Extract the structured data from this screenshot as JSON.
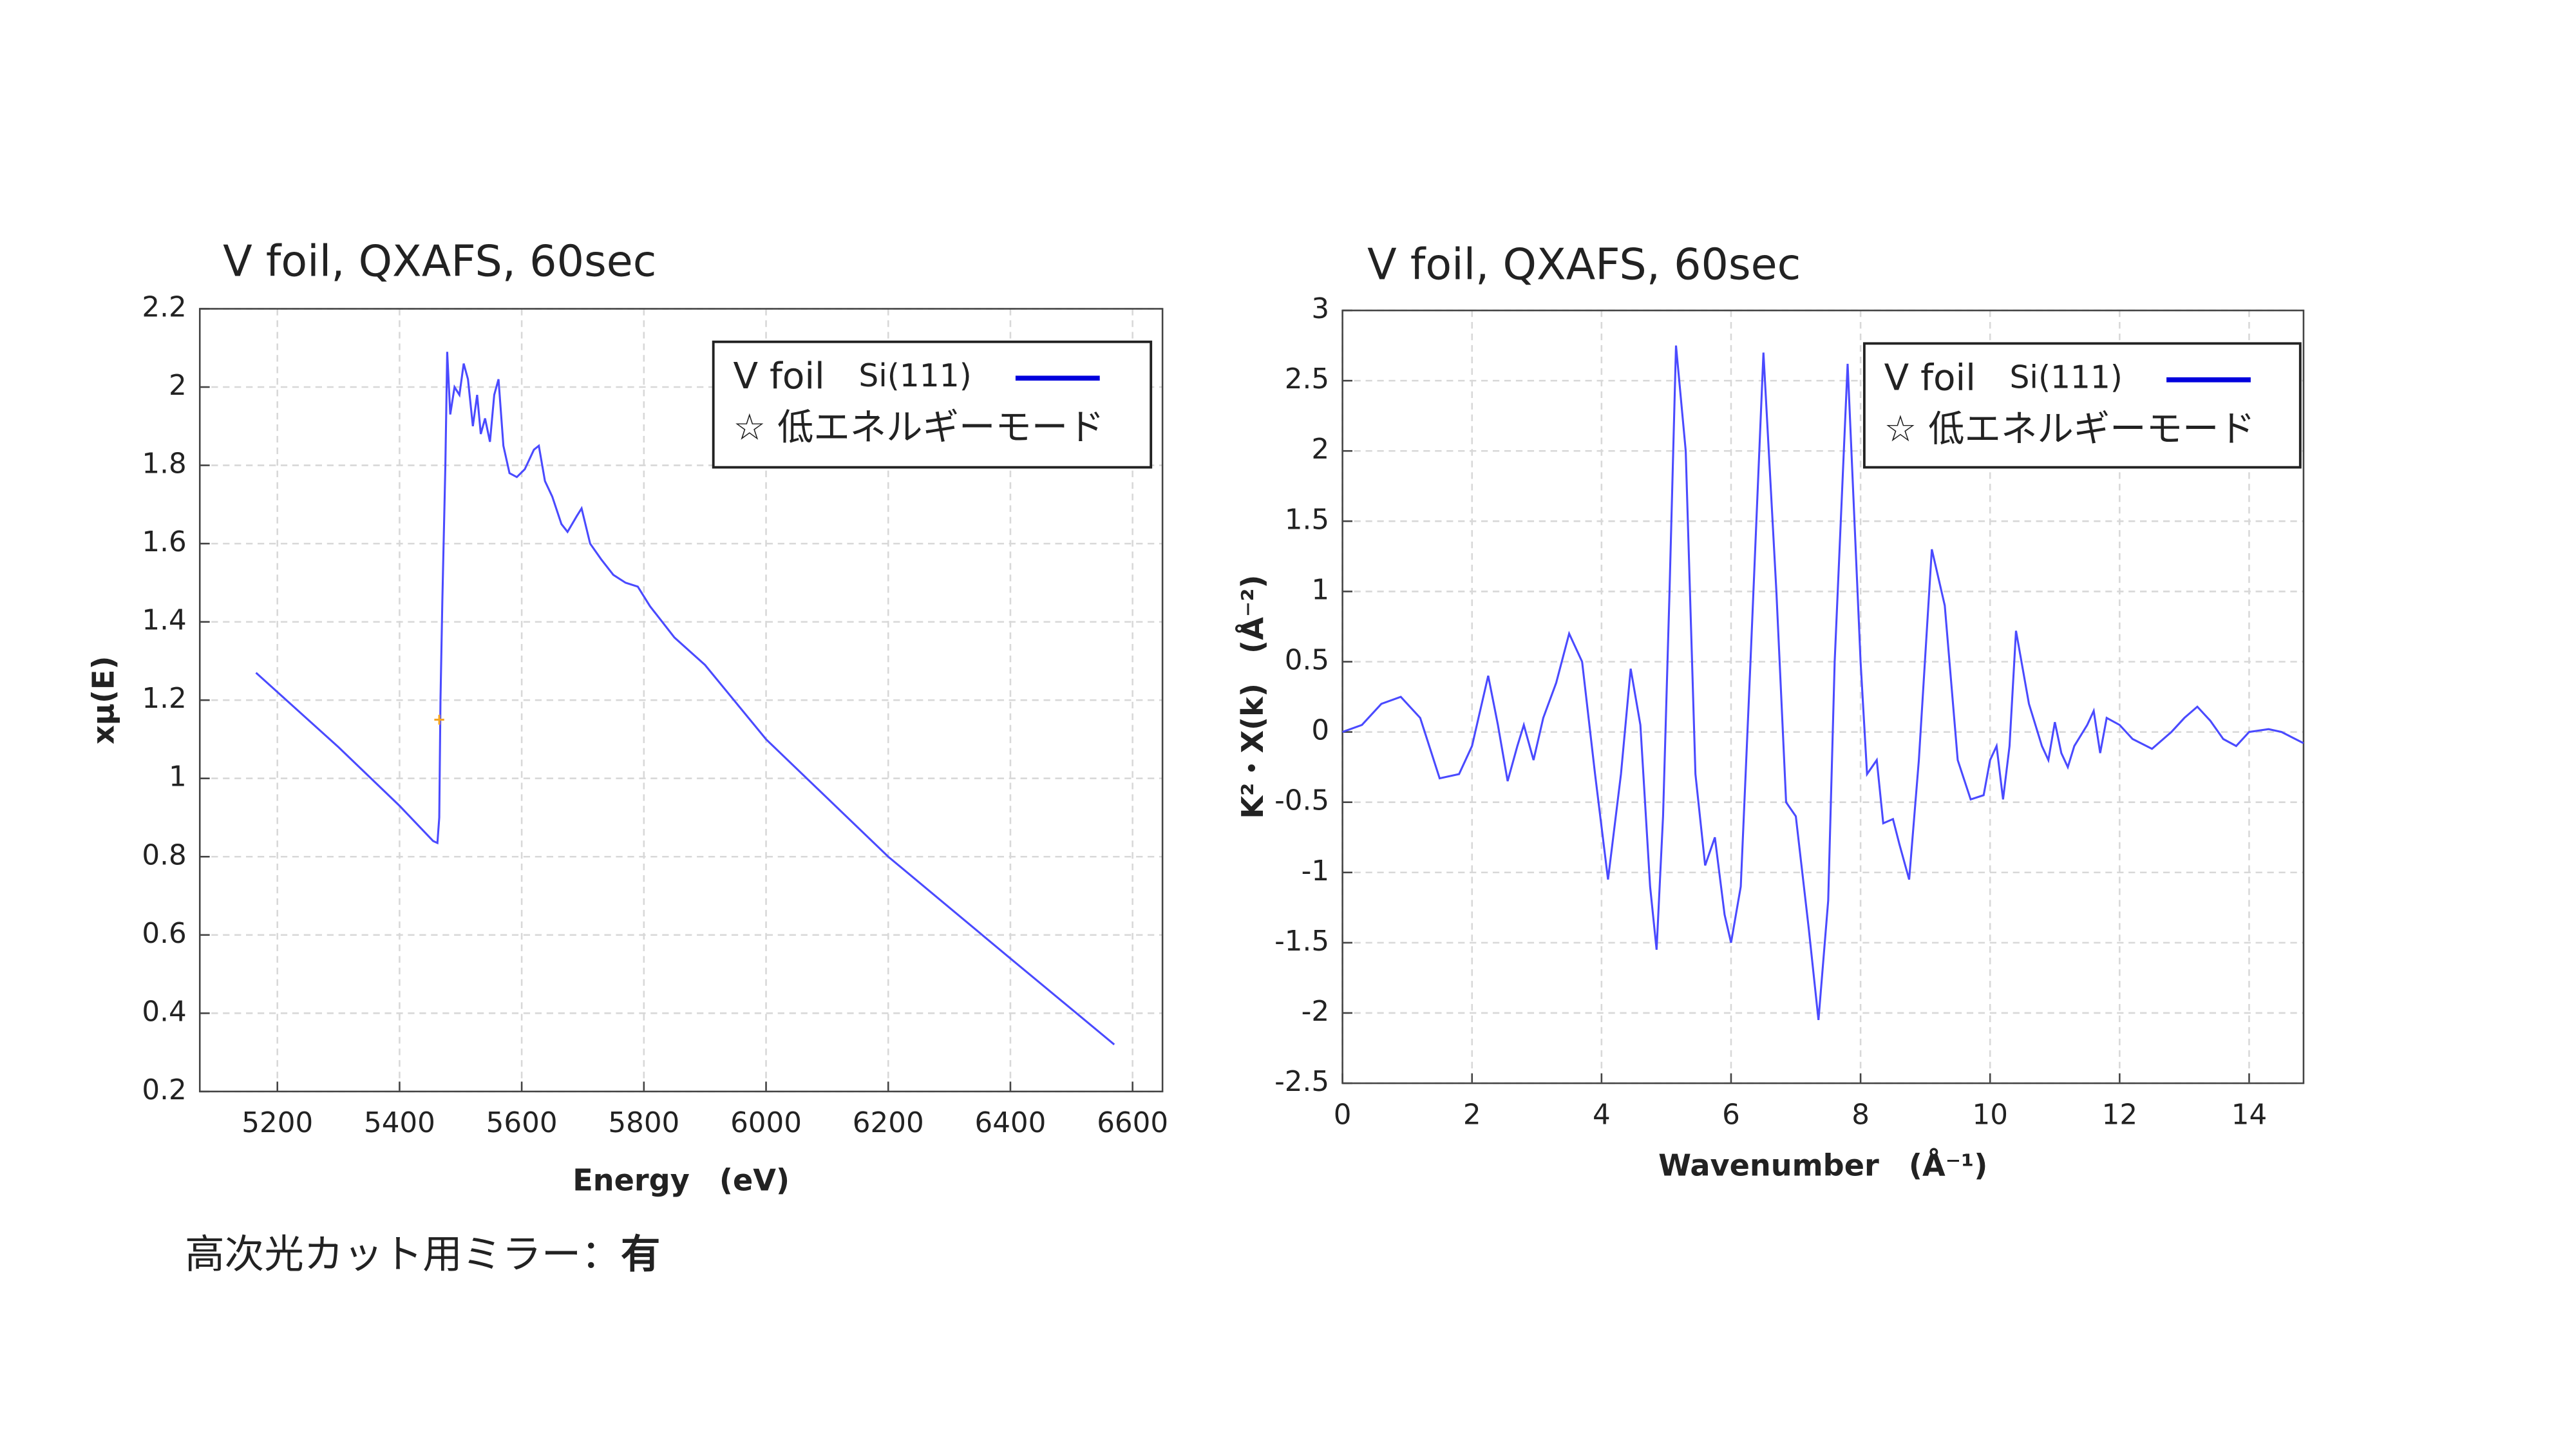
{
  "chart_data": [
    {
      "type": "line",
      "title": "V foil, QXAFS, 60sec",
      "x_label": "Energy　(eV)",
      "y_label": "xμ(E)",
      "xlim": [
        5073,
        6649
      ],
      "xticks": [
        5200,
        5400,
        5600,
        5800,
        6000,
        6200,
        6400,
        6600
      ],
      "ylim": [
        0.2,
        2.2
      ],
      "yticks": [
        0.2,
        0.4,
        0.6,
        0.8,
        1,
        1.2,
        1.4,
        1.6,
        1.8,
        2,
        2.2
      ],
      "grid": true,
      "legend_sub": "Si(111)",
      "legend_note": "☆ 低エネルギーモード",
      "series": [
        {
          "name": "V foil",
          "color": "#4a4aff",
          "x": [
            5165,
            5300,
            5400,
            5455,
            5462,
            5465,
            5467,
            5470,
            5475,
            5478,
            5483,
            5490,
            5498,
            5505,
            5512,
            5520,
            5527,
            5533,
            5540,
            5548,
            5555,
            5562,
            5570,
            5580,
            5592,
            5605,
            5620,
            5628,
            5638,
            5650,
            5665,
            5675,
            5690,
            5698,
            5712,
            5730,
            5750,
            5770,
            5790,
            5810,
            5850,
            5900,
            6000,
            6200,
            6400,
            6570
          ],
          "values": [
            1.27,
            1.08,
            0.93,
            0.84,
            0.835,
            0.9,
            1.2,
            1.45,
            1.8,
            2.09,
            1.93,
            2.0,
            1.98,
            2.06,
            2.02,
            1.9,
            1.98,
            1.88,
            1.92,
            1.86,
            1.98,
            2.02,
            1.85,
            1.78,
            1.77,
            1.79,
            1.84,
            1.85,
            1.76,
            1.72,
            1.65,
            1.63,
            1.67,
            1.69,
            1.6,
            1.56,
            1.52,
            1.5,
            1.49,
            1.44,
            1.36,
            1.29,
            1.1,
            0.8,
            0.54,
            0.32
          ]
        }
      ],
      "marker": {
        "x": 5465,
        "y": 1.15,
        "color": "#f5a623"
      }
    },
    {
      "type": "line",
      "title": "V foil, QXAFS, 60sec",
      "x_label": "Wavenumber　(Å⁻¹)",
      "y_label": "K²・X(k)　(Å⁻²)",
      "xlim": [
        0,
        14.84
      ],
      "xticks": [
        0,
        2,
        4,
        6,
        8,
        10,
        12,
        14
      ],
      "ylim": [
        -2.5,
        3
      ],
      "yticks": [
        -2.5,
        -2,
        -1.5,
        -1,
        -0.5,
        0,
        0.5,
        1,
        1.5,
        2,
        2.5,
        3
      ],
      "grid": true,
      "legend_sub": "Si(111)",
      "legend_note": "☆ 低エネルギーモード",
      "series": [
        {
          "name": "V foil",
          "color": "#4a4aff",
          "x": [
            0,
            0.3,
            0.6,
            0.9,
            1.2,
            1.5,
            1.8,
            2.0,
            2.25,
            2.4,
            2.55,
            2.7,
            2.8,
            2.95,
            3.1,
            3.3,
            3.5,
            3.7,
            3.9,
            4.1,
            4.3,
            4.45,
            4.6,
            4.75,
            4.85,
            4.95,
            5.05,
            5.15,
            5.3,
            5.45,
            5.6,
            5.75,
            5.9,
            6.0,
            6.15,
            6.3,
            6.5,
            6.7,
            6.85,
            7.0,
            7.2,
            7.35,
            7.5,
            7.6,
            7.8,
            8.0,
            8.1,
            8.25,
            8.35,
            8.5,
            8.6,
            8.75,
            8.9,
            9.1,
            9.3,
            9.5,
            9.7,
            9.9,
            10.0,
            10.1,
            10.2,
            10.3,
            10.4,
            10.6,
            10.8,
            10.9,
            11.0,
            11.1,
            11.2,
            11.3,
            11.5,
            11.6,
            11.7,
            11.8,
            12.0,
            12.2,
            12.5,
            12.8,
            13.0,
            13.2,
            13.4,
            13.6,
            13.8,
            14.0,
            14.3,
            14.5,
            14.84
          ],
          "values": [
            0,
            0.05,
            0.2,
            0.25,
            0.1,
            -0.33,
            -0.3,
            -0.1,
            0.4,
            0.05,
            -0.35,
            -0.1,
            0.05,
            -0.2,
            0.1,
            0.35,
            0.7,
            0.5,
            -0.3,
            -1.05,
            -0.3,
            0.45,
            0.05,
            -1.1,
            -1.55,
            -0.6,
            1.0,
            2.75,
            2.0,
            -0.3,
            -0.95,
            -0.75,
            -1.3,
            -1.5,
            -1.1,
            0.5,
            2.7,
            1.0,
            -0.5,
            -0.6,
            -1.4,
            -2.05,
            -1.2,
            0.5,
            2.62,
            0.5,
            -0.3,
            -0.2,
            -0.65,
            -0.62,
            -0.8,
            -1.05,
            -0.2,
            1.3,
            0.9,
            -0.2,
            -0.48,
            -0.45,
            -0.2,
            -0.1,
            -0.48,
            -0.1,
            0.72,
            0.2,
            -0.1,
            -0.2,
            0.07,
            -0.15,
            -0.25,
            -0.1,
            0.05,
            0.15,
            -0.15,
            0.1,
            0.05,
            -0.05,
            -0.12,
            0,
            0.1,
            0.18,
            0.08,
            -0.05,
            -0.1,
            0,
            0.02,
            0,
            -0.08
          ]
        }
      ]
    }
  ],
  "note": {
    "text": "高次光カット用ミラー：",
    "emphasis": "有"
  }
}
